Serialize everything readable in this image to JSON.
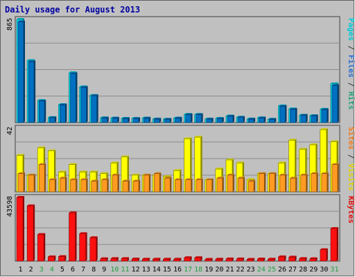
{
  "chart_data": {
    "type": "bar",
    "title": "Daily usage for August 2013",
    "categories": [
      "1",
      "2",
      "3",
      "4",
      "5",
      "6",
      "7",
      "8",
      "9",
      "10",
      "11",
      "12",
      "13",
      "14",
      "15",
      "16",
      "17",
      "18",
      "19",
      "20",
      "21",
      "22",
      "23",
      "24",
      "25",
      "26",
      "27",
      "28",
      "29",
      "30",
      "31"
    ],
    "weekend_days": [
      "3",
      "4",
      "10",
      "11",
      "17",
      "18",
      "24",
      "25",
      "31"
    ],
    "panels": [
      {
        "id": "top",
        "max_label": "865",
        "ylim": [
          0,
          865
        ],
        "side_labels": [
          {
            "text": "Pages",
            "color": "#00c8d8"
          },
          {
            "text": " / ",
            "color": "#333333"
          },
          {
            "text": "Files",
            "color": "#2a6fd0"
          },
          {
            "text": " / ",
            "color": "#333333"
          },
          {
            "text": "Hits",
            "color": "#2aa07a"
          }
        ],
        "series": [
          {
            "name": "Hits",
            "color": "#00d8f0",
            "values": [
              865,
              520,
              185,
              42,
              150,
              418,
              300,
              228,
              40,
              38,
              35,
              35,
              38,
              30,
              28,
              38,
              68,
              68,
              30,
              35,
              55,
              45,
              30,
              40,
              28,
              140,
              115,
              62,
              58,
              112,
              325
            ]
          },
          {
            "name": "Files",
            "color": "#0070c0",
            "values": [
              845,
              510,
              180,
              40,
              148,
              410,
              295,
              225,
              38,
              36,
              33,
              33,
              36,
              28,
              26,
              36,
              66,
              66,
              28,
              33,
              53,
              43,
              28,
              38,
              26,
              136,
              110,
              60,
              56,
              108,
              310
            ]
          }
        ]
      },
      {
        "id": "middle",
        "max_label": "42",
        "ylim": [
          0,
          42
        ],
        "side_labels": [
          {
            "text": "Sites",
            "color": "#f07a1a"
          },
          {
            "text": " / ",
            "color": "#333333"
          },
          {
            "text": "Visits",
            "color": "#e0d000"
          }
        ],
        "series": [
          {
            "name": "Visits",
            "color": "#ffff00",
            "values": [
              24,
              11,
              29,
              27,
              13,
              18,
              13,
              13,
              12,
              19,
              23,
              11,
              11,
              11,
              10,
              14,
              35,
              36,
              8,
              15,
              21,
              19,
              8,
              12,
              12,
              19,
              34,
              28,
              31,
              41,
              33
            ]
          },
          {
            "name": "Sites",
            "color": "#ff9a22",
            "values": [
              12,
              11,
              18,
              8,
              9,
              8,
              8,
              7,
              8,
              11,
              7,
              7,
              11,
              12,
              9,
              8,
              8,
              8,
              8,
              9,
              11,
              9,
              7,
              12,
              12,
              11,
              9,
              11,
              12,
              12,
              18
            ]
          }
        ]
      },
      {
        "id": "bottom",
        "max_label": "43598",
        "ylim": [
          0,
          43598
        ],
        "side_labels": [
          {
            "text": "KBytes",
            "color": "#e01010"
          }
        ],
        "series": [
          {
            "name": "KBytes",
            "color": "#ff1010",
            "values": [
              43598,
              37800,
              18200,
              2900,
              3100,
              33000,
              18800,
              16000,
              1600,
              1700,
              1700,
              1400,
              1300,
              1300,
              1300,
              1300,
              2300,
              2300,
              1200,
              1300,
              1500,
              1500,
              1200,
              1400,
              1300,
              2900,
              2700,
              1700,
              1600,
              7800,
              22300
            ]
          }
        ]
      }
    ],
    "grid": true
  }
}
